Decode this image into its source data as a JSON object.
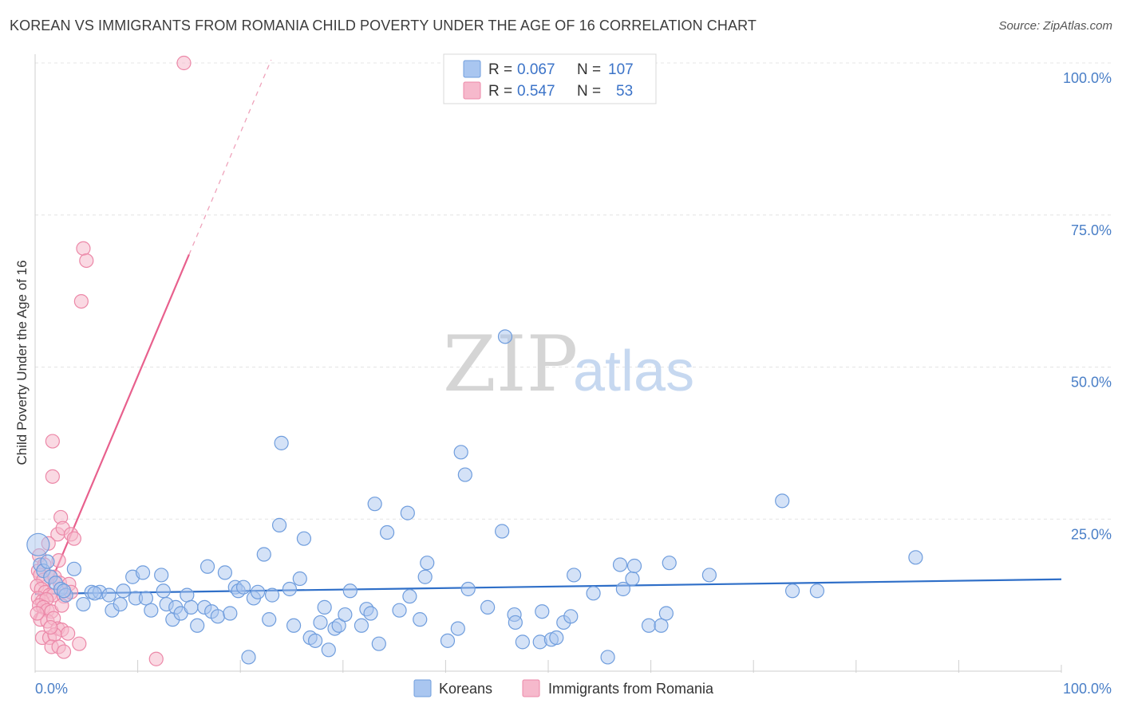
{
  "title": "KOREAN VS IMMIGRANTS FROM ROMANIA CHILD POVERTY UNDER THE AGE OF 16 CORRELATION CHART",
  "source": "Source: ZipAtlas.com",
  "watermark": {
    "zip": "ZIP",
    "atlas": "atlas"
  },
  "colors": {
    "koreans_fill": "#a9c6f0",
    "koreans_stroke": "#6f9ddd",
    "koreans_line": "#2f6fc8",
    "romania_fill": "#f6b9cc",
    "romania_stroke": "#ec88a8",
    "romania_line": "#e8608d",
    "axis_tick_color": "#4a7fc7",
    "grid": "#e4e4e4"
  },
  "legend": {
    "rows": [
      {
        "r_label": "R =",
        "r_value": "0.067",
        "n_label": "N =",
        "n_value": "107"
      },
      {
        "r_label": "R =",
        "r_value": "0.547",
        "n_label": "N =",
        "n_value": "53"
      }
    ]
  },
  "bottom_legend": {
    "koreans": "Koreans",
    "romania": "Immigrants from Romania"
  },
  "chart_data": {
    "type": "scatter",
    "title": "KOREAN VS IMMIGRANTS FROM ROMANIA CHILD POVERTY UNDER THE AGE OF 16 CORRELATION CHART",
    "xlabel": "",
    "ylabel": "Child Poverty Under the Age of 16",
    "xlim": [
      0,
      100
    ],
    "ylim": [
      0,
      100
    ],
    "y_ticks": [
      {
        "value": 100,
        "label": "100.0%"
      },
      {
        "value": 75,
        "label": "75.0%"
      },
      {
        "value": 50,
        "label": "50.0%"
      },
      {
        "value": 25,
        "label": "25.0%"
      }
    ],
    "x_tick_labels": {
      "min": "0.0%",
      "max": "100.0%"
    },
    "series": [
      {
        "name": "Koreans",
        "r": 0.067,
        "n": 107,
        "trend": {
          "x": [
            0,
            100
          ],
          "y": [
            12.7,
            15.1
          ],
          "style": "solid"
        },
        "points": [
          [
            0.3,
            20.8
          ],
          [
            0.5,
            17.5
          ],
          [
            0.8,
            16.5
          ],
          [
            1.2,
            18
          ],
          [
            1.5,
            15.5
          ],
          [
            2,
            14.5
          ],
          [
            2.5,
            13.5
          ],
          [
            3,
            12.5
          ],
          [
            3.8,
            16.8
          ],
          [
            4.7,
            11
          ],
          [
            5.5,
            13
          ],
          [
            6.3,
            13
          ],
          [
            7.2,
            12.5
          ],
          [
            7.5,
            10
          ],
          [
            8.3,
            11
          ],
          [
            8.6,
            13.2
          ],
          [
            9.5,
            15.5
          ],
          [
            9.8,
            12
          ],
          [
            10.5,
            16.2
          ],
          [
            10.8,
            12
          ],
          [
            11.3,
            10
          ],
          [
            12.3,
            15.8
          ],
          [
            12.5,
            13.2
          ],
          [
            12.8,
            11
          ],
          [
            13.4,
            8.5
          ],
          [
            13.7,
            10.5
          ],
          [
            14.2,
            9.5
          ],
          [
            14.8,
            12.5
          ],
          [
            15.2,
            10.5
          ],
          [
            15.8,
            7.5
          ],
          [
            16.5,
            10.5
          ],
          [
            16.8,
            17.2
          ],
          [
            17.2,
            9.8
          ],
          [
            17.8,
            9
          ],
          [
            18.5,
            16.2
          ],
          [
            19,
            9.5
          ],
          [
            19.5,
            13.8
          ],
          [
            19.8,
            13.2
          ],
          [
            20.3,
            13.8
          ],
          [
            20.8,
            2.3
          ],
          [
            21.3,
            12
          ],
          [
            21.7,
            13
          ],
          [
            22.3,
            19.2
          ],
          [
            22.8,
            8.5
          ],
          [
            23.1,
            12.5
          ],
          [
            23.8,
            24
          ],
          [
            24,
            37.5
          ],
          [
            24.8,
            13.5
          ],
          [
            25.2,
            7.5
          ],
          [
            25.8,
            15.2
          ],
          [
            26.2,
            21.8
          ],
          [
            26.8,
            5.5
          ],
          [
            27.3,
            5
          ],
          [
            27.8,
            8
          ],
          [
            28.2,
            10.5
          ],
          [
            28.6,
            3.5
          ],
          [
            29.2,
            7
          ],
          [
            29.6,
            7.5
          ],
          [
            30.2,
            9.3
          ],
          [
            30.7,
            13.2
          ],
          [
            31.8,
            7.5
          ],
          [
            32.3,
            10.2
          ],
          [
            32.7,
            9.5
          ],
          [
            33.1,
            27.5
          ],
          [
            33.5,
            4.5
          ],
          [
            34.3,
            22.8
          ],
          [
            35.5,
            10
          ],
          [
            36.3,
            26
          ],
          [
            36.5,
            12.3
          ],
          [
            37.5,
            8.5
          ],
          [
            38,
            15.5
          ],
          [
            38.2,
            17.8
          ],
          [
            40.2,
            5
          ],
          [
            41.2,
            7
          ],
          [
            41.5,
            36
          ],
          [
            41.9,
            32.3
          ],
          [
            42.2,
            13.5
          ],
          [
            44.1,
            10.5
          ],
          [
            45.5,
            23
          ],
          [
            45.8,
            55
          ],
          [
            46.7,
            9.3
          ],
          [
            46.8,
            8
          ],
          [
            47.5,
            4.8
          ],
          [
            49.2,
            4.8
          ],
          [
            49.4,
            9.8
          ],
          [
            50.3,
            5.2
          ],
          [
            50.8,
            5.5
          ],
          [
            51.5,
            8
          ],
          [
            52.2,
            9
          ],
          [
            52.5,
            15.8
          ],
          [
            54.4,
            12.8
          ],
          [
            55.8,
            2.3
          ],
          [
            57,
            17.5
          ],
          [
            57.3,
            13.5
          ],
          [
            58.2,
            15.2
          ],
          [
            58.4,
            17.3
          ],
          [
            59.8,
            7.5
          ],
          [
            61,
            7.5
          ],
          [
            61.5,
            9.5
          ],
          [
            61.8,
            17.8
          ],
          [
            65.7,
            15.8
          ],
          [
            72.8,
            28
          ],
          [
            73.8,
            13.2
          ],
          [
            76.2,
            13.2
          ],
          [
            85.8,
            18.7
          ],
          [
            5.8,
            12.8
          ],
          [
            2.8,
            13.2
          ]
        ]
      },
      {
        "name": "Immigrants from Romania",
        "r": 0.547,
        "n": 53,
        "trend": {
          "solid": {
            "x": [
              0,
              15
            ],
            "y": [
              8.5,
              68.5
            ]
          },
          "dashed": {
            "x": [
              15,
              23
            ],
            "y": [
              68.5,
              100.5
            ]
          }
        },
        "points": [
          [
            14.5,
            100
          ],
          [
            4.7,
            69.5
          ],
          [
            5,
            67.5
          ],
          [
            4.5,
            60.8
          ],
          [
            1.7,
            37.8
          ],
          [
            1.7,
            32
          ],
          [
            2.5,
            25.3
          ],
          [
            2.2,
            22.5
          ],
          [
            2.7,
            23.5
          ],
          [
            3.5,
            22.5
          ],
          [
            3.8,
            21.8
          ],
          [
            1.3,
            21
          ],
          [
            0.4,
            19
          ],
          [
            2.3,
            18.2
          ],
          [
            0.9,
            17.5
          ],
          [
            0.3,
            16.5
          ],
          [
            0.5,
            15.8
          ],
          [
            0.8,
            15
          ],
          [
            1.5,
            15.5
          ],
          [
            1.9,
            15.5
          ],
          [
            2.4,
            14.5
          ],
          [
            0.2,
            14
          ],
          [
            0.6,
            13.5
          ],
          [
            1,
            13
          ],
          [
            1.4,
            12.5
          ],
          [
            1.8,
            12.5
          ],
          [
            0.3,
            12
          ],
          [
            0.7,
            11.5
          ],
          [
            1.1,
            11.8
          ],
          [
            2.8,
            12.3
          ],
          [
            3.3,
            14.3
          ],
          [
            0.4,
            10.8
          ],
          [
            0.8,
            10.5
          ],
          [
            1.2,
            10
          ],
          [
            1.6,
            9.8
          ],
          [
            2.6,
            10.8
          ],
          [
            0.5,
            8.5
          ],
          [
            1.2,
            8.2
          ],
          [
            1.8,
            8.7
          ],
          [
            2.2,
            7
          ],
          [
            2.6,
            6.8
          ],
          [
            0.7,
            5.5
          ],
          [
            1.4,
            5.5
          ],
          [
            1.9,
            6
          ],
          [
            3.2,
            6.2
          ],
          [
            4.3,
            4.5
          ],
          [
            1.6,
            4
          ],
          [
            2.3,
            4
          ],
          [
            2.8,
            3.2
          ],
          [
            11.8,
            2
          ],
          [
            0.2,
            9.5
          ],
          [
            1.5,
            7.2
          ],
          [
            3.5,
            13
          ]
        ]
      }
    ]
  }
}
